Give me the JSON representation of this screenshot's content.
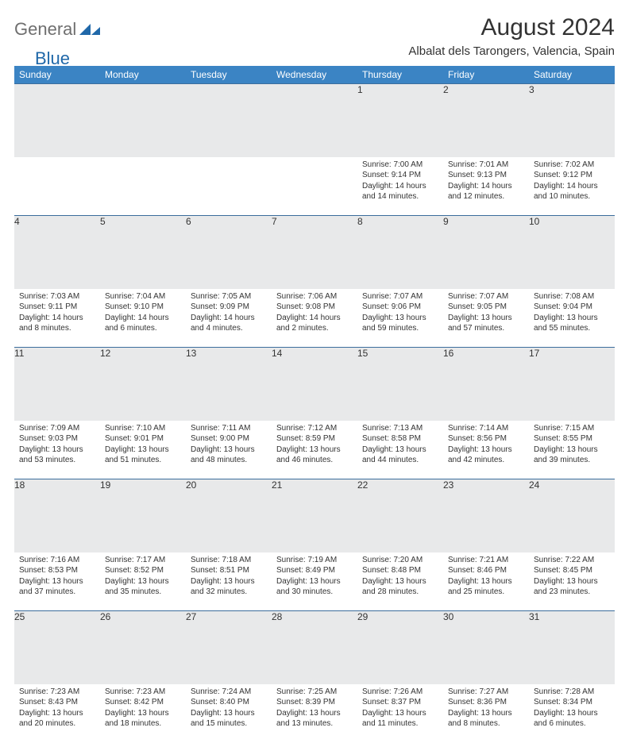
{
  "logo": {
    "text_gray": "General",
    "text_blue": "Blue"
  },
  "title": "August 2024",
  "location": "Albalat dels Tarongers, Valencia, Spain",
  "colors": {
    "header_bg": "#3b84c4",
    "header_text": "#ffffff",
    "daynum_bg": "#e8e9ea",
    "week_divider": "#3b6d9c",
    "logo_blue": "#2068a9",
    "logo_gray": "#6f6f6f",
    "text": "#333333",
    "background": "#ffffff"
  },
  "typography": {
    "title_fontsize": 30,
    "location_fontsize": 15,
    "dayhead_fontsize": 12,
    "daynum_fontsize": 12,
    "cell_fontsize": 10,
    "font_family": "Arial"
  },
  "day_headers": [
    "Sunday",
    "Monday",
    "Tuesday",
    "Wednesday",
    "Thursday",
    "Friday",
    "Saturday"
  ],
  "weeks": [
    [
      null,
      null,
      null,
      null,
      {
        "n": "1",
        "sr": "7:00 AM",
        "ss": "9:14 PM",
        "dl": "14 hours and 14 minutes."
      },
      {
        "n": "2",
        "sr": "7:01 AM",
        "ss": "9:13 PM",
        "dl": "14 hours and 12 minutes."
      },
      {
        "n": "3",
        "sr": "7:02 AM",
        "ss": "9:12 PM",
        "dl": "14 hours and 10 minutes."
      }
    ],
    [
      {
        "n": "4",
        "sr": "7:03 AM",
        "ss": "9:11 PM",
        "dl": "14 hours and 8 minutes."
      },
      {
        "n": "5",
        "sr": "7:04 AM",
        "ss": "9:10 PM",
        "dl": "14 hours and 6 minutes."
      },
      {
        "n": "6",
        "sr": "7:05 AM",
        "ss": "9:09 PM",
        "dl": "14 hours and 4 minutes."
      },
      {
        "n": "7",
        "sr": "7:06 AM",
        "ss": "9:08 PM",
        "dl": "14 hours and 2 minutes."
      },
      {
        "n": "8",
        "sr": "7:07 AM",
        "ss": "9:06 PM",
        "dl": "13 hours and 59 minutes."
      },
      {
        "n": "9",
        "sr": "7:07 AM",
        "ss": "9:05 PM",
        "dl": "13 hours and 57 minutes."
      },
      {
        "n": "10",
        "sr": "7:08 AM",
        "ss": "9:04 PM",
        "dl": "13 hours and 55 minutes."
      }
    ],
    [
      {
        "n": "11",
        "sr": "7:09 AM",
        "ss": "9:03 PM",
        "dl": "13 hours and 53 minutes."
      },
      {
        "n": "12",
        "sr": "7:10 AM",
        "ss": "9:01 PM",
        "dl": "13 hours and 51 minutes."
      },
      {
        "n": "13",
        "sr": "7:11 AM",
        "ss": "9:00 PM",
        "dl": "13 hours and 48 minutes."
      },
      {
        "n": "14",
        "sr": "7:12 AM",
        "ss": "8:59 PM",
        "dl": "13 hours and 46 minutes."
      },
      {
        "n": "15",
        "sr": "7:13 AM",
        "ss": "8:58 PM",
        "dl": "13 hours and 44 minutes."
      },
      {
        "n": "16",
        "sr": "7:14 AM",
        "ss": "8:56 PM",
        "dl": "13 hours and 42 minutes."
      },
      {
        "n": "17",
        "sr": "7:15 AM",
        "ss": "8:55 PM",
        "dl": "13 hours and 39 minutes."
      }
    ],
    [
      {
        "n": "18",
        "sr": "7:16 AM",
        "ss": "8:53 PM",
        "dl": "13 hours and 37 minutes."
      },
      {
        "n": "19",
        "sr": "7:17 AM",
        "ss": "8:52 PM",
        "dl": "13 hours and 35 minutes."
      },
      {
        "n": "20",
        "sr": "7:18 AM",
        "ss": "8:51 PM",
        "dl": "13 hours and 32 minutes."
      },
      {
        "n": "21",
        "sr": "7:19 AM",
        "ss": "8:49 PM",
        "dl": "13 hours and 30 minutes."
      },
      {
        "n": "22",
        "sr": "7:20 AM",
        "ss": "8:48 PM",
        "dl": "13 hours and 28 minutes."
      },
      {
        "n": "23",
        "sr": "7:21 AM",
        "ss": "8:46 PM",
        "dl": "13 hours and 25 minutes."
      },
      {
        "n": "24",
        "sr": "7:22 AM",
        "ss": "8:45 PM",
        "dl": "13 hours and 23 minutes."
      }
    ],
    [
      {
        "n": "25",
        "sr": "7:23 AM",
        "ss": "8:43 PM",
        "dl": "13 hours and 20 minutes."
      },
      {
        "n": "26",
        "sr": "7:23 AM",
        "ss": "8:42 PM",
        "dl": "13 hours and 18 minutes."
      },
      {
        "n": "27",
        "sr": "7:24 AM",
        "ss": "8:40 PM",
        "dl": "13 hours and 15 minutes."
      },
      {
        "n": "28",
        "sr": "7:25 AM",
        "ss": "8:39 PM",
        "dl": "13 hours and 13 minutes."
      },
      {
        "n": "29",
        "sr": "7:26 AM",
        "ss": "8:37 PM",
        "dl": "13 hours and 11 minutes."
      },
      {
        "n": "30",
        "sr": "7:27 AM",
        "ss": "8:36 PM",
        "dl": "13 hours and 8 minutes."
      },
      {
        "n": "31",
        "sr": "7:28 AM",
        "ss": "8:34 PM",
        "dl": "13 hours and 6 minutes."
      }
    ]
  ],
  "labels": {
    "sunrise": "Sunrise:",
    "sunset": "Sunset:",
    "daylight": "Daylight:"
  }
}
